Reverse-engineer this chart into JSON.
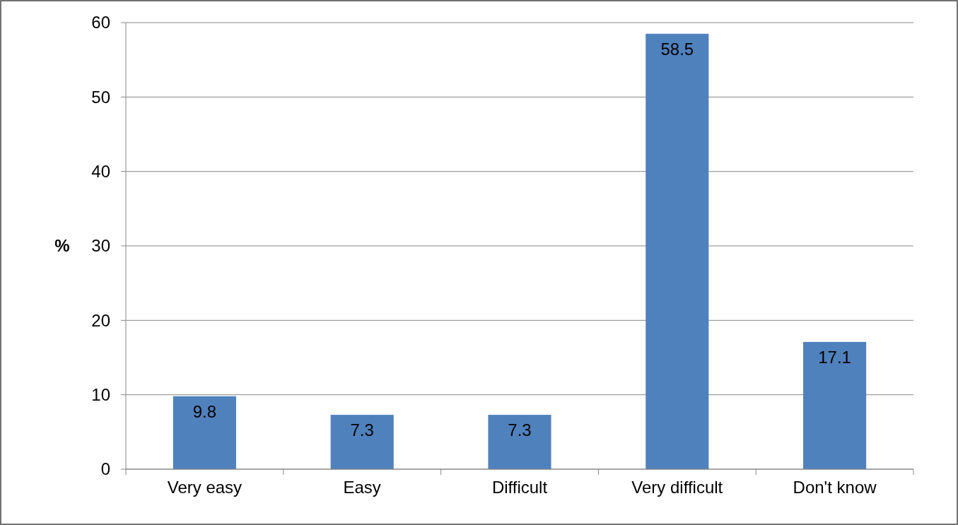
{
  "chart_data": {
    "type": "bar",
    "ylabel": "%",
    "categories": [
      "Very easy",
      "Easy",
      "Difficult",
      "Very difficult",
      "Don't know"
    ],
    "values": [
      9.8,
      7.3,
      7.3,
      58.5,
      17.1
    ],
    "color": "#4f81bd",
    "ylim": [
      0,
      60
    ],
    "yticks": [
      0,
      10,
      20,
      30,
      40,
      50,
      60
    ],
    "grid": "y",
    "data_labels": true
  }
}
